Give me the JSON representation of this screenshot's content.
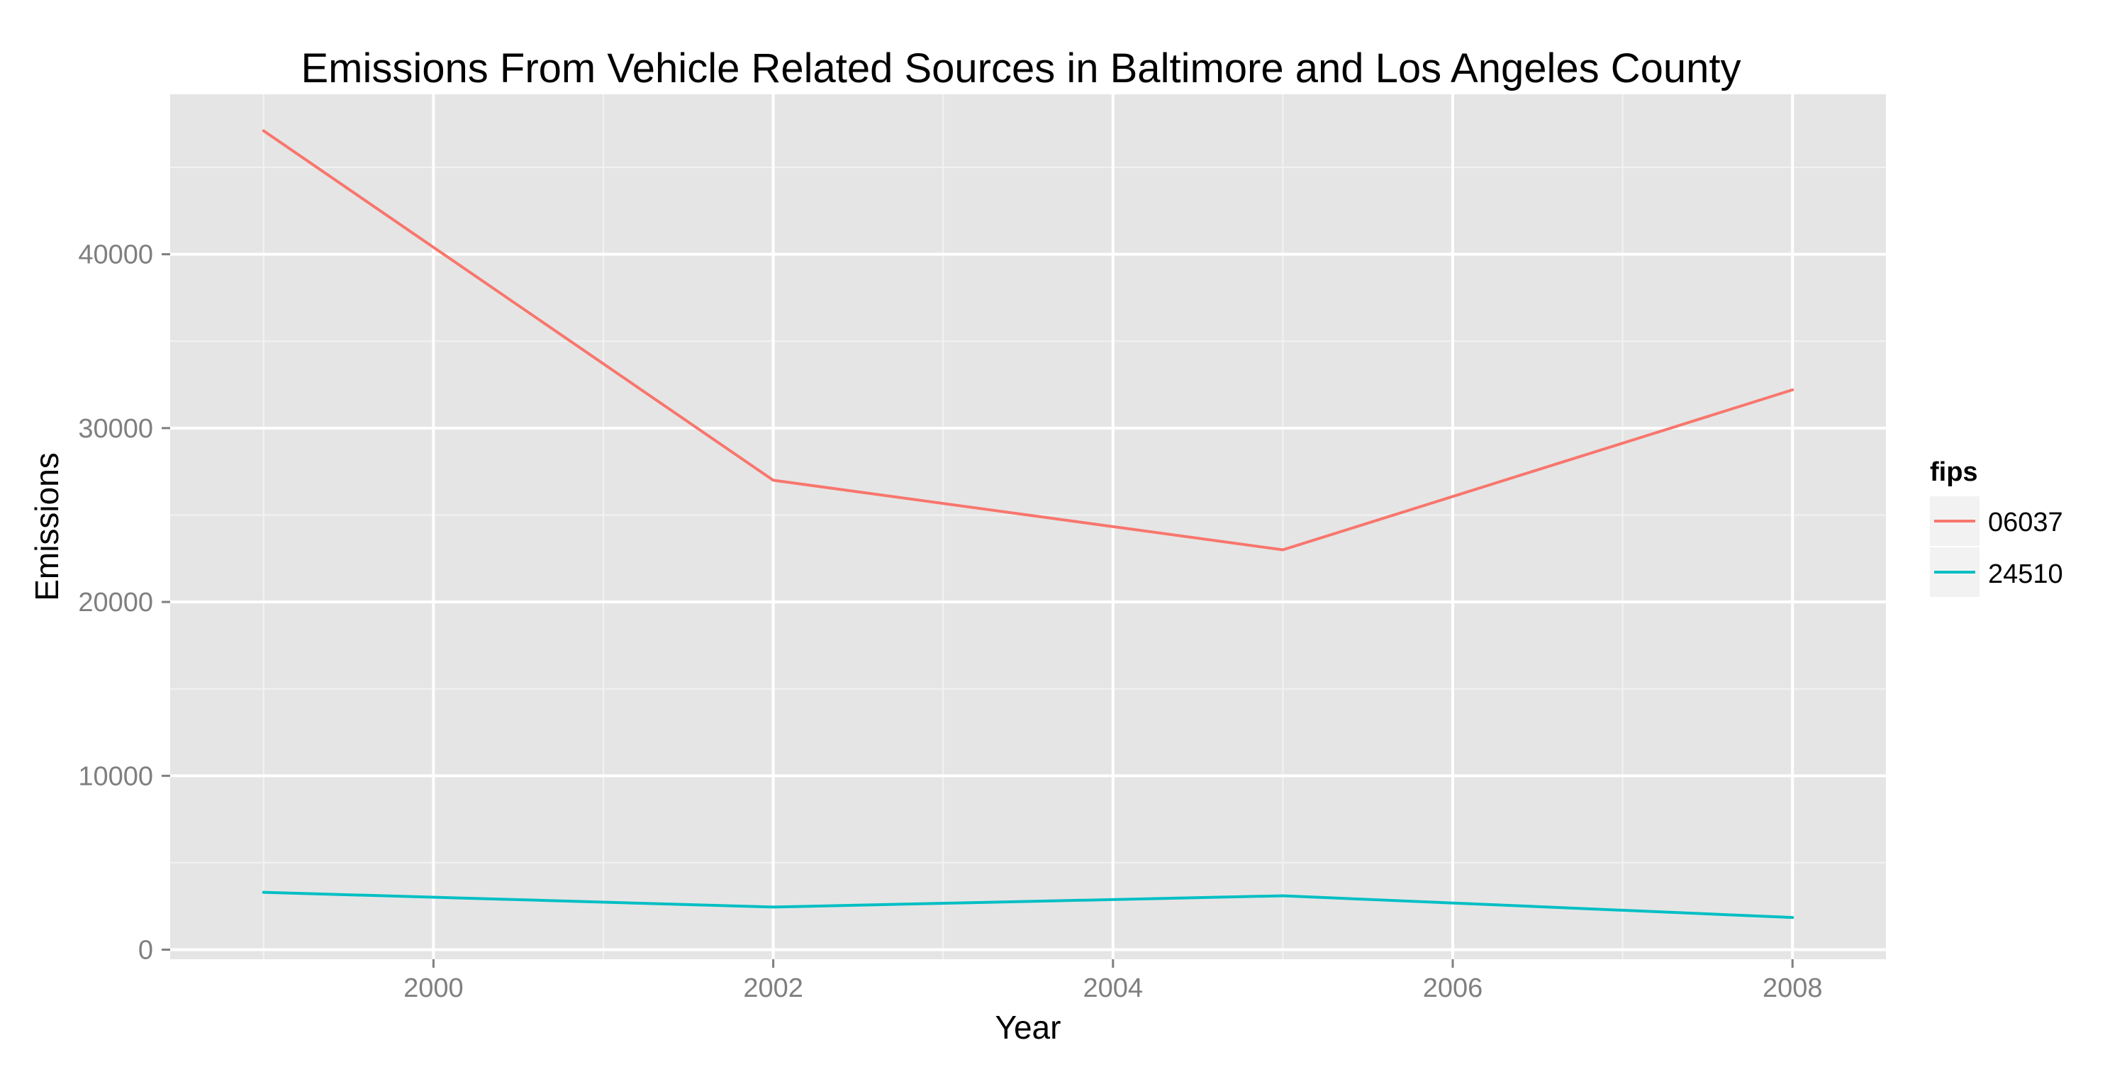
{
  "chart_data": {
    "type": "line",
    "title": "Emissions From Vehicle Related Sources in Baltimore and Los Angeles County",
    "xlabel": "Year",
    "ylabel": "Emissions",
    "x": [
      1999,
      2002,
      2005,
      2008
    ],
    "xlim": [
      1998.45,
      2008.55
    ],
    "ylim": [
      -550,
      49200
    ],
    "x_ticks": [
      2000,
      2002,
      2004,
      2006,
      2008
    ],
    "x_tick_labels": [
      "2000",
      "2002",
      "2004",
      "2006",
      "2008"
    ],
    "y_ticks": [
      0,
      10000,
      20000,
      30000,
      40000
    ],
    "y_tick_labels": [
      "0",
      "10000",
      "20000",
      "30000",
      "40000"
    ],
    "x_minor": [
      1999,
      2001,
      2003,
      2005,
      2007
    ],
    "y_minor": [
      5000,
      15000,
      25000,
      35000,
      45000
    ],
    "grid": true,
    "panel_color": "#e5e5e5",
    "grid_color": "#ffffff",
    "legend": {
      "title": "fips",
      "position": "right"
    },
    "series": [
      {
        "name": "06037",
        "color": "#f8766d",
        "values": [
          47100,
          27000,
          23000,
          32200
        ]
      },
      {
        "name": "24510",
        "color": "#00bfc4",
        "values": [
          3300,
          2450,
          3100,
          1850
        ]
      }
    ]
  }
}
